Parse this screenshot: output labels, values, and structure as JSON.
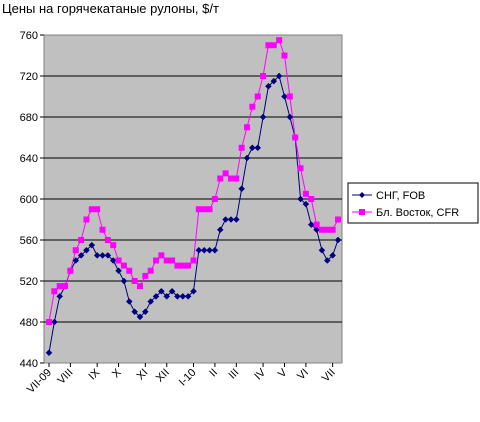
{
  "chart_data": {
    "type": "line",
    "title": "Цены на горячекатаные рулоны, $/т",
    "xlabel": "",
    "ylabel": "",
    "ylim": [
      440,
      760
    ],
    "yticks": [
      440,
      480,
      520,
      560,
      600,
      640,
      680,
      720,
      760
    ],
    "grid": true,
    "plot_background": "#c0c0c0",
    "legend_position": "right",
    "x_labels": [
      "VII-09",
      "VIII",
      "IX",
      "X",
      "XI",
      "XII",
      "I-10",
      "II",
      "III",
      "IV",
      "V",
      "VI",
      "VII"
    ],
    "x_label_index": [
      0,
      4,
      9,
      13,
      18,
      22,
      27,
      31,
      35,
      40,
      44,
      48,
      53
    ],
    "series": [
      {
        "name": "СНГ, FOB",
        "color": "#000080",
        "marker": "diamond",
        "values": [
          450,
          480,
          505,
          515,
          530,
          540,
          545,
          550,
          555,
          545,
          545,
          545,
          540,
          530,
          520,
          500,
          490,
          485,
          490,
          500,
          505,
          510,
          505,
          510,
          505,
          505,
          505,
          510,
          550,
          550,
          550,
          550,
          570,
          580,
          580,
          580,
          610,
          640,
          650,
          650,
          680,
          710,
          715,
          720,
          700,
          680,
          660,
          600,
          595,
          575,
          570,
          550,
          540,
          545,
          560
        ]
      },
      {
        "name": "Бл. Восток, CFR",
        "color": "#ff00ff",
        "marker": "square",
        "values": [
          480,
          510,
          515,
          515,
          530,
          550,
          560,
          580,
          590,
          590,
          570,
          560,
          555,
          540,
          535,
          530,
          520,
          515,
          525,
          530,
          540,
          545,
          540,
          540,
          535,
          535,
          535,
          540,
          590,
          590,
          590,
          600,
          620,
          625,
          620,
          620,
          650,
          670,
          690,
          700,
          720,
          750,
          750,
          755,
          740,
          700,
          660,
          630,
          605,
          600,
          575,
          570,
          570,
          570,
          580
        ]
      }
    ]
  }
}
